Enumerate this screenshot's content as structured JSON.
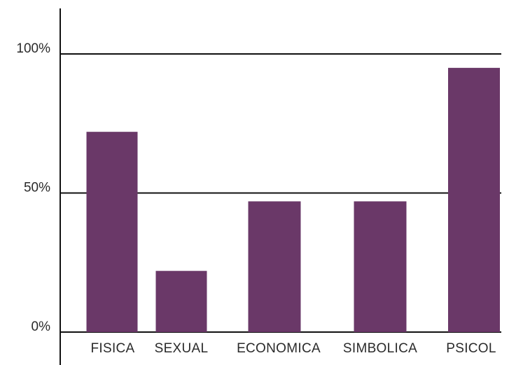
{
  "chart_data": {
    "type": "bar",
    "categories": [
      "FISICA",
      "SEXUAL",
      "ECONOMICA",
      "SIMBOLICA",
      "PSICOL"
    ],
    "values": [
      72,
      22,
      47,
      47,
      95
    ],
    "ylim": [
      0,
      100
    ],
    "yticks": [
      {
        "value": 0,
        "label": "0%"
      },
      {
        "value": 50,
        "label": "50%"
      },
      {
        "value": 100,
        "label": "100%"
      }
    ],
    "grid": true,
    "bar_color": "#6a3868",
    "axis_color": "#111111"
  }
}
